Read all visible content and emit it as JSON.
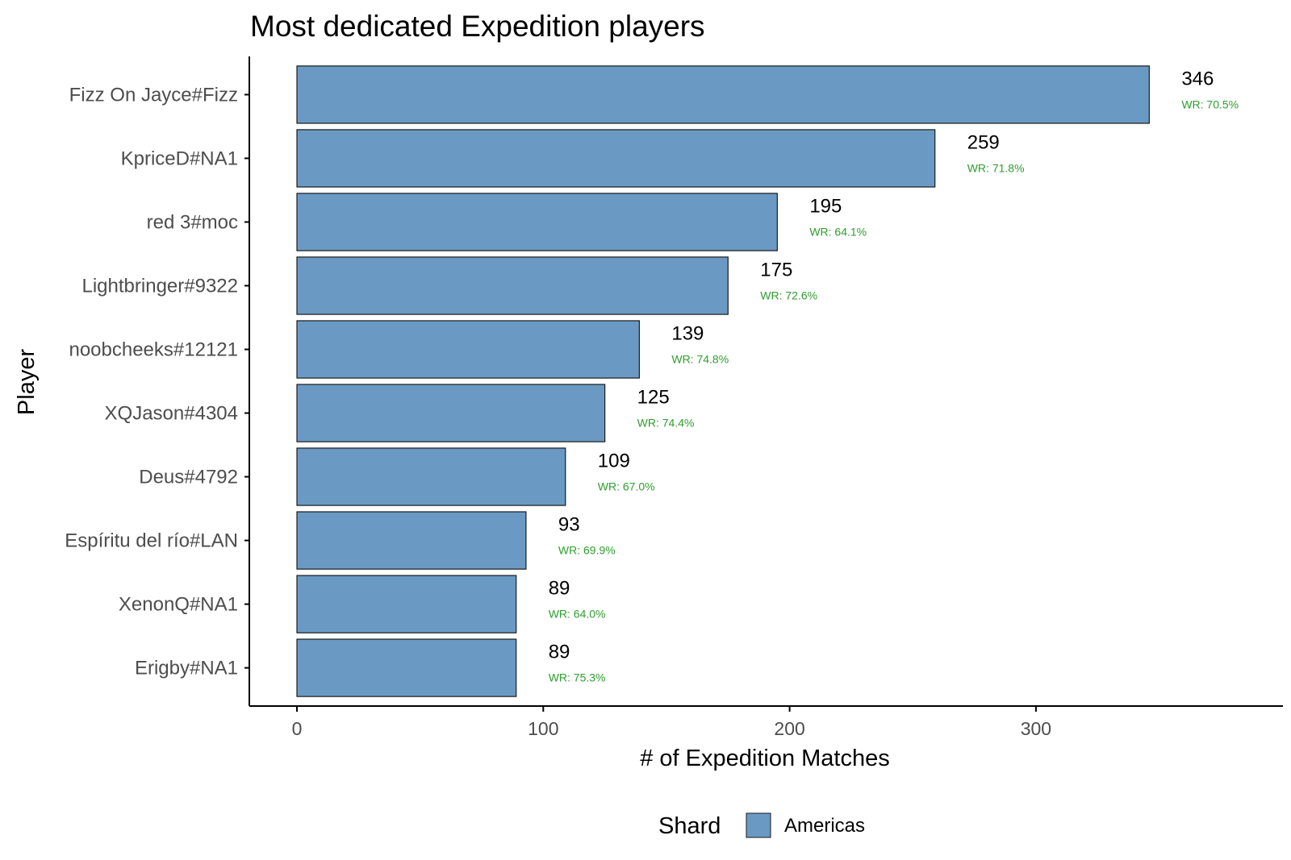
{
  "chart_data": {
    "type": "bar",
    "orientation": "horizontal",
    "title": "Most dedicated Expedition players",
    "xlabel": "# of Expedition Matches",
    "ylabel": "Player",
    "xlim": [
      -20,
      400
    ],
    "xticks": [
      0,
      100,
      200,
      300
    ],
    "categories": [
      "Fizz On Jayce#Fizz",
      "KpriceD#NA1",
      "red 3#moc",
      "Lightbringer#9322",
      "noobcheeks#12121",
      "XQJason#4304",
      "Deus#4792",
      "Espíritu del río#LAN",
      "XenonQ#NA1",
      "Erigby#NA1"
    ],
    "values": [
      346,
      259,
      195,
      175,
      139,
      125,
      109,
      93,
      89,
      89
    ],
    "win_rates": [
      "WR: 70.5%",
      "WR: 71.8%",
      "WR: 64.1%",
      "WR: 72.6%",
      "WR: 74.8%",
      "WR: 74.4%",
      "WR: 67.0%",
      "WR: 69.9%",
      "WR: 64.0%",
      "WR: 75.3%"
    ],
    "legend": {
      "title": "Shard",
      "placement": "bottom",
      "entries": [
        {
          "label": "Americas",
          "color": "#6a9ac4"
        }
      ]
    },
    "grid": false
  },
  "colors": {
    "bar_fill": "#6a9ac4",
    "bar_stroke": "#1a1a1a",
    "wr_text": "#2e9e2e",
    "axis": "#000000"
  }
}
